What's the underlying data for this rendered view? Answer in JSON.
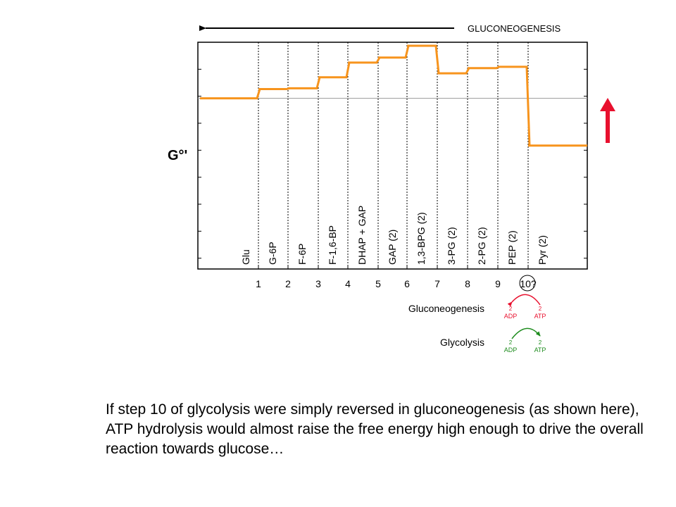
{
  "chart_data": {
    "type": "line",
    "title": "",
    "xlabel": "",
    "ylabel": "G°'",
    "x_ticks": [
      "1",
      "2",
      "3",
      "4",
      "5",
      "6",
      "7",
      "8",
      "9",
      "10?"
    ],
    "ylim": [
      0,
      8.5
    ],
    "grid": false,
    "stage_labels": [
      "Glu",
      "G-6P",
      "F-6P",
      "F-1,6-BP",
      "DHAP + GAP",
      "GAP (2)",
      "1,3-BPG (2)",
      "3-PG (2)",
      "2-PG (2)",
      "PEP (2)",
      "Pyr (2)"
    ],
    "series": [
      {
        "name": "",
        "color": "#F7941D",
        "step_points": [
          [
            0,
            6.5
          ],
          [
            1,
            6.85
          ],
          [
            2,
            6.88
          ],
          [
            3,
            7.3
          ],
          [
            4,
            7.86
          ],
          [
            5,
            8.05
          ],
          [
            6,
            8.5
          ],
          [
            7,
            7.45
          ],
          [
            8,
            7.65
          ],
          [
            9,
            7.7
          ],
          [
            10,
            4.7
          ]
        ]
      }
    ],
    "reference_level": 6.5,
    "annotations": {
      "direction_label": "GLUCONEOGENESIS",
      "up_arrow_color": "#E8102E",
      "step10_circled": "10?"
    }
  },
  "legend": {
    "rows": [
      {
        "label": "Gluconeogenesis",
        "left_count": "2",
        "left_label": "ADP",
        "right_count": "2",
        "right_label": "ATP",
        "color": "#E8102E",
        "arrow_direction": "right-to-left"
      },
      {
        "label": "Glycolysis",
        "left_count": "2",
        "left_label": "ADP",
        "right_count": "2",
        "right_label": "ATP",
        "color": "#1E8C1E",
        "arrow_direction": "left-to-right"
      }
    ]
  },
  "caption": "If step 10 of glycolysis were simply reversed in gluconeogenesis (as shown here), ATP hydrolysis would almost raise the free energy high enough to drive the overall reaction towards glucose…"
}
